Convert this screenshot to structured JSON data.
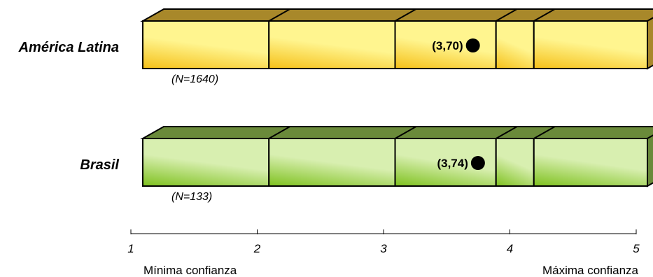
{
  "chart_data": {
    "type": "bar",
    "orientation": "horizontal",
    "xlim": [
      1,
      5
    ],
    "x_ticks": [
      "1",
      "2",
      "3",
      "4",
      "5"
    ],
    "x_tick_values": [
      1,
      2,
      3,
      4,
      5
    ],
    "segment_boundaries": [
      1,
      2,
      3,
      3.8,
      4.1,
      5
    ],
    "axis_left_label": "Mínima confianza",
    "axis_right_label": "Máxima confianza",
    "rows": [
      {
        "label": "América Latina",
        "n_label": "(N=1640)",
        "value": 3.7,
        "value_label": "(3,70)",
        "color_light": "#fff58f",
        "color_dark": "#f5c018",
        "color_top": "#a8882a"
      },
      {
        "label": "Brasil",
        "n_label": "(N=133)",
        "value": 3.74,
        "value_label": "(3,74)",
        "color_light": "#d8efb0",
        "color_dark": "#7ec11e",
        "color_top": "#6a8a3a"
      }
    ]
  }
}
